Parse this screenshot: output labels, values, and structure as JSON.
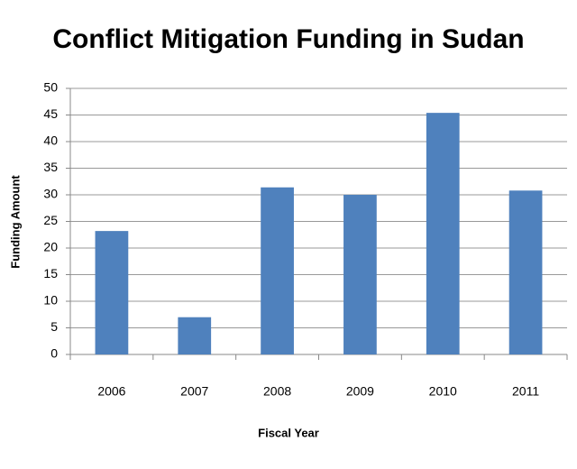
{
  "chart_data": {
    "type": "bar",
    "title": "Conflict Mitigation Funding in Sudan",
    "x_label": "Fiscal Year",
    "y_label": "Funding Amount",
    "categories": [
      "2006",
      "2007",
      "2008",
      "2009",
      "2010",
      "2011"
    ],
    "values": [
      23.2,
      7,
      31.4,
      30,
      45.4,
      30.8
    ],
    "color": "#4f81bd",
    "ylim": [
      0,
      50
    ],
    "yticks": [
      0,
      5,
      10,
      15,
      20,
      25,
      30,
      35,
      40,
      45,
      50
    ],
    "grid": true
  }
}
